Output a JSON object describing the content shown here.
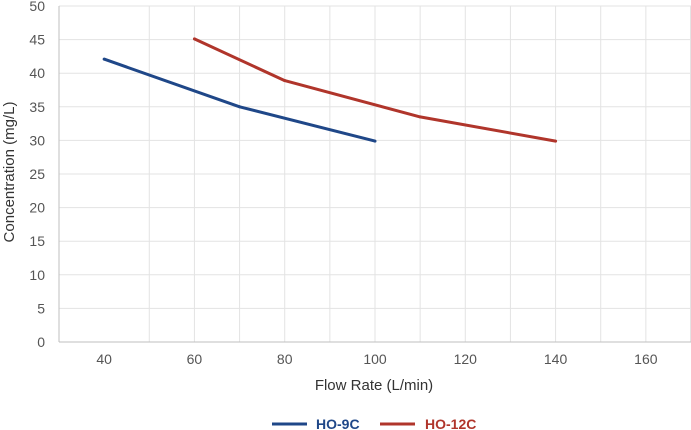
{
  "chart_data": {
    "type": "line",
    "xlabel": "Flow Rate (L/min)",
    "ylabel": "Concentration (mg/L)",
    "xlim": [
      30,
      170
    ],
    "ylim": [
      0,
      50
    ],
    "x_ticks": [
      "40",
      "60",
      "80",
      "100",
      "120",
      "140",
      "160"
    ],
    "y_ticks": [
      "0",
      "5",
      "10",
      "15",
      "20",
      "25",
      "30",
      "35",
      "40",
      "45",
      "50"
    ],
    "grid": true,
    "legend_position": "bottom",
    "series": [
      {
        "name": "HO-9C",
        "color": "#1f4788",
        "points": [
          [
            40,
            42.1
          ],
          [
            70,
            35.0
          ],
          [
            100,
            29.9
          ]
        ]
      },
      {
        "name": "HO-12C",
        "color": "#b0352b",
        "points": [
          [
            60,
            45.1
          ],
          [
            80,
            38.9
          ],
          [
            110,
            33.5
          ],
          [
            140,
            29.9
          ]
        ]
      }
    ]
  }
}
